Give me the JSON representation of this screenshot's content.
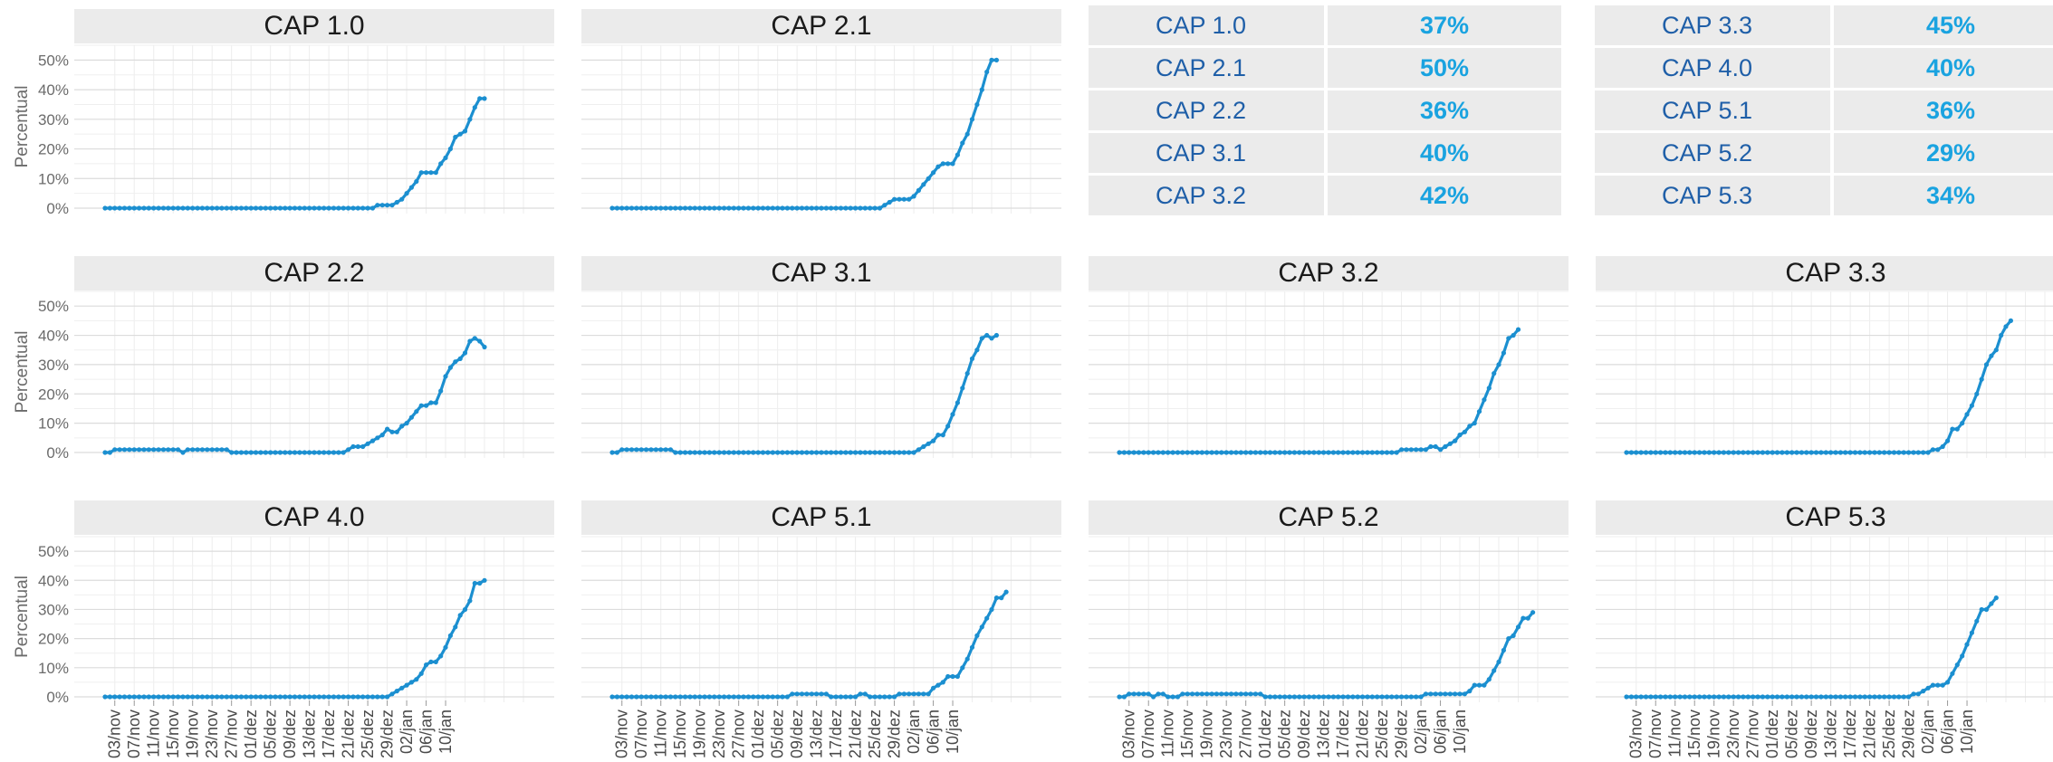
{
  "chart_data": {
    "type": "line",
    "ylabel": "Percentual",
    "yticks": [
      "0%",
      "10%",
      "20%",
      "30%",
      "40%",
      "50%"
    ],
    "ylim": [
      0,
      55
    ],
    "x_tick_labels": [
      "03/nov",
      "07/nov",
      "11/nov",
      "15/nov",
      "19/nov",
      "23/nov",
      "27/nov",
      "01/dez",
      "05/dez",
      "09/dez",
      "13/dez",
      "17/dez",
      "21/dez",
      "25/dez",
      "29/dez",
      "02/jan",
      "06/jan",
      "10/jan"
    ],
    "line_color": "#1b8fd0",
    "grid": true,
    "panels": [
      {
        "title": "CAP 1.0",
        "points": [
          [
            56,
            1
          ],
          [
            57,
            1
          ],
          [
            58,
            1
          ],
          [
            59,
            1
          ],
          [
            60,
            2
          ],
          [
            61,
            3
          ],
          [
            62,
            5
          ],
          [
            63,
            7
          ],
          [
            64,
            9
          ],
          [
            65,
            12
          ],
          [
            66,
            12
          ],
          [
            67,
            12
          ],
          [
            68,
            12
          ],
          [
            69,
            15
          ],
          [
            70,
            17
          ],
          [
            71,
            20
          ],
          [
            72,
            24
          ],
          [
            73,
            25
          ],
          [
            74,
            26
          ],
          [
            75,
            30
          ],
          [
            76,
            34
          ],
          [
            77,
            37
          ],
          [
            78,
            37
          ]
        ]
      },
      {
        "title": "CAP 2.1",
        "points": [
          [
            56,
            1
          ],
          [
            57,
            2
          ],
          [
            58,
            3
          ],
          [
            59,
            3
          ],
          [
            60,
            3
          ],
          [
            61,
            3
          ],
          [
            62,
            4
          ],
          [
            63,
            6
          ],
          [
            64,
            8
          ],
          [
            65,
            10
          ],
          [
            66,
            12
          ],
          [
            67,
            14
          ],
          [
            68,
            15
          ],
          [
            69,
            15
          ],
          [
            70,
            15
          ],
          [
            71,
            18
          ],
          [
            72,
            22
          ],
          [
            73,
            25
          ],
          [
            74,
            30
          ],
          [
            75,
            35
          ],
          [
            76,
            40
          ],
          [
            77,
            46
          ],
          [
            78,
            50
          ],
          [
            79,
            50
          ]
        ]
      },
      {
        "title": "CAP 2.2",
        "segments": [
          [
            2,
            15,
            1
          ],
          [
            17,
            25,
            1
          ]
        ],
        "points": [
          [
            50,
            1
          ],
          [
            51,
            2
          ],
          [
            52,
            2
          ],
          [
            53,
            2
          ],
          [
            54,
            3
          ],
          [
            55,
            4
          ],
          [
            56,
            5
          ],
          [
            57,
            6
          ],
          [
            58,
            8
          ],
          [
            59,
            7
          ],
          [
            60,
            7
          ],
          [
            61,
            9
          ],
          [
            62,
            10
          ],
          [
            63,
            12
          ],
          [
            64,
            14
          ],
          [
            65,
            16
          ],
          [
            66,
            16
          ],
          [
            67,
            17
          ],
          [
            68,
            17
          ],
          [
            69,
            21
          ],
          [
            70,
            26
          ],
          [
            71,
            29
          ],
          [
            72,
            31
          ],
          [
            73,
            32
          ],
          [
            74,
            34
          ],
          [
            75,
            38
          ],
          [
            76,
            39
          ],
          [
            77,
            38
          ],
          [
            78,
            36
          ]
        ]
      },
      {
        "title": "CAP 3.1",
        "segments": [
          [
            2,
            12,
            1
          ]
        ],
        "points": [
          [
            63,
            1
          ],
          [
            64,
            2
          ],
          [
            65,
            3
          ],
          [
            66,
            4
          ],
          [
            67,
            6
          ],
          [
            68,
            6
          ],
          [
            69,
            9
          ],
          [
            70,
            13
          ],
          [
            71,
            17
          ],
          [
            72,
            22
          ],
          [
            73,
            27
          ],
          [
            74,
            32
          ],
          [
            75,
            35
          ],
          [
            76,
            39
          ],
          [
            77,
            40
          ],
          [
            78,
            39
          ],
          [
            79,
            40
          ]
        ]
      },
      {
        "title": "CAP 3.2",
        "segments": [
          [
            58,
            63,
            1
          ]
        ],
        "points": [
          [
            63,
            1
          ],
          [
            64,
            2
          ],
          [
            65,
            2
          ],
          [
            66,
            1
          ],
          [
            67,
            2
          ],
          [
            68,
            3
          ],
          [
            69,
            4
          ],
          [
            70,
            6
          ],
          [
            71,
            7
          ],
          [
            72,
            9
          ],
          [
            73,
            10
          ],
          [
            74,
            14
          ],
          [
            75,
            18
          ],
          [
            76,
            22
          ],
          [
            77,
            27
          ],
          [
            78,
            30
          ],
          [
            79,
            34
          ],
          [
            80,
            39
          ],
          [
            81,
            40
          ],
          [
            82,
            42
          ]
        ]
      },
      {
        "title": "CAP 3.3",
        "points": [
          [
            63,
            1
          ],
          [
            64,
            1
          ],
          [
            65,
            2
          ],
          [
            66,
            4
          ],
          [
            67,
            8
          ],
          [
            68,
            8
          ],
          [
            69,
            10
          ],
          [
            70,
            13
          ],
          [
            71,
            16
          ],
          [
            72,
            20
          ],
          [
            73,
            25
          ],
          [
            74,
            30
          ],
          [
            75,
            33
          ],
          [
            76,
            35
          ],
          [
            77,
            40
          ],
          [
            78,
            43
          ],
          [
            79,
            45
          ]
        ]
      },
      {
        "title": "CAP 4.0",
        "points": [
          [
            59,
            1
          ],
          [
            60,
            2
          ],
          [
            61,
            3
          ],
          [
            62,
            4
          ],
          [
            63,
            5
          ],
          [
            64,
            6
          ],
          [
            65,
            8
          ],
          [
            66,
            11
          ],
          [
            67,
            12
          ],
          [
            68,
            12
          ],
          [
            69,
            14
          ],
          [
            70,
            17
          ],
          [
            71,
            21
          ],
          [
            72,
            24
          ],
          [
            73,
            28
          ],
          [
            74,
            30
          ],
          [
            75,
            33
          ],
          [
            76,
            39
          ],
          [
            77,
            39
          ],
          [
            78,
            40
          ]
        ]
      },
      {
        "title": "CAP 5.1",
        "segments": [
          [
            37,
            44,
            1
          ],
          [
            51,
            52,
            1
          ],
          [
            59,
            65,
            1
          ]
        ],
        "points": [
          [
            65,
            1
          ],
          [
            66,
            3
          ],
          [
            67,
            4
          ],
          [
            68,
            5
          ],
          [
            69,
            7
          ],
          [
            70,
            7
          ],
          [
            71,
            7
          ],
          [
            72,
            10
          ],
          [
            73,
            13
          ],
          [
            74,
            17
          ],
          [
            75,
            21
          ],
          [
            76,
            24
          ],
          [
            77,
            27
          ],
          [
            78,
            30
          ],
          [
            79,
            34
          ],
          [
            80,
            34
          ],
          [
            81,
            36
          ]
        ]
      },
      {
        "title": "CAP 5.2",
        "segments": [
          [
            2,
            6,
            1
          ],
          [
            8,
            9,
            1
          ],
          [
            13,
            29,
            1
          ],
          [
            63,
            71,
            1
          ]
        ],
        "points": [
          [
            71,
            1
          ],
          [
            72,
            2
          ],
          [
            73,
            4
          ],
          [
            74,
            4
          ],
          [
            75,
            4
          ],
          [
            76,
            6
          ],
          [
            77,
            9
          ],
          [
            78,
            12
          ],
          [
            79,
            16
          ],
          [
            80,
            20
          ],
          [
            81,
            21
          ],
          [
            82,
            24
          ],
          [
            83,
            27
          ],
          [
            84,
            27
          ],
          [
            85,
            29
          ]
        ]
      },
      {
        "title": "CAP 5.3",
        "points": [
          [
            59,
            1
          ],
          [
            60,
            1
          ],
          [
            61,
            2
          ],
          [
            62,
            3
          ],
          [
            63,
            4
          ],
          [
            64,
            4
          ],
          [
            65,
            4
          ],
          [
            66,
            5
          ],
          [
            67,
            8
          ],
          [
            68,
            11
          ],
          [
            69,
            14
          ],
          [
            70,
            18
          ],
          [
            71,
            22
          ],
          [
            72,
            26
          ],
          [
            73,
            30
          ],
          [
            74,
            30
          ],
          [
            75,
            32
          ],
          [
            76,
            34
          ]
        ]
      }
    ]
  },
  "summary_table": {
    "left": [
      {
        "name": "CAP 1.0",
        "value": "37%"
      },
      {
        "name": "CAP 2.1",
        "value": "50%"
      },
      {
        "name": "CAP 2.2",
        "value": "36%"
      },
      {
        "name": "CAP 3.1",
        "value": "40%"
      },
      {
        "name": "CAP 3.2",
        "value": "42%"
      }
    ],
    "right": [
      {
        "name": "CAP 3.3",
        "value": "45%"
      },
      {
        "name": "CAP 4.0",
        "value": "40%"
      },
      {
        "name": "CAP 5.1",
        "value": "36%"
      },
      {
        "name": "CAP 5.2",
        "value": "29%"
      },
      {
        "name": "CAP 5.3",
        "value": "34%"
      }
    ]
  }
}
